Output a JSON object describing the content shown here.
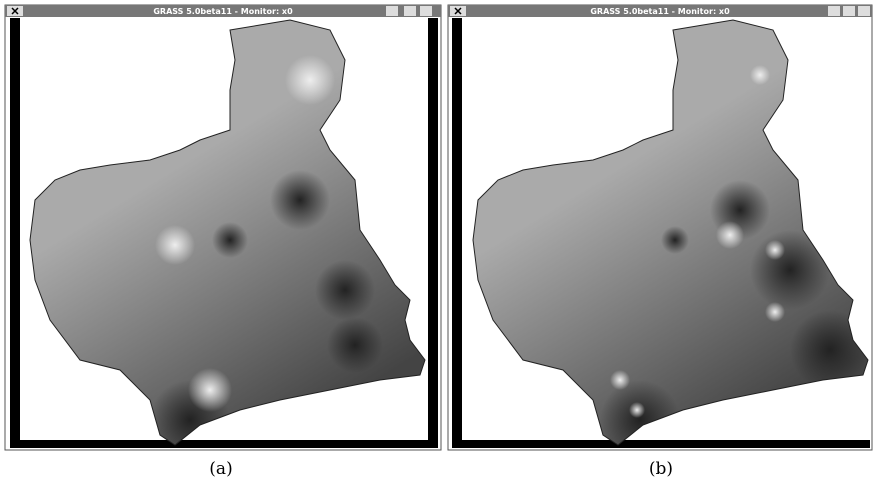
{
  "windows": [
    {
      "title": "GRASS 5.0beta11 - Monitor: x0",
      "caption": "(a)"
    },
    {
      "title": "GRASS 5.0beta11 - Monitor: x0",
      "caption": "(b)"
    }
  ]
}
